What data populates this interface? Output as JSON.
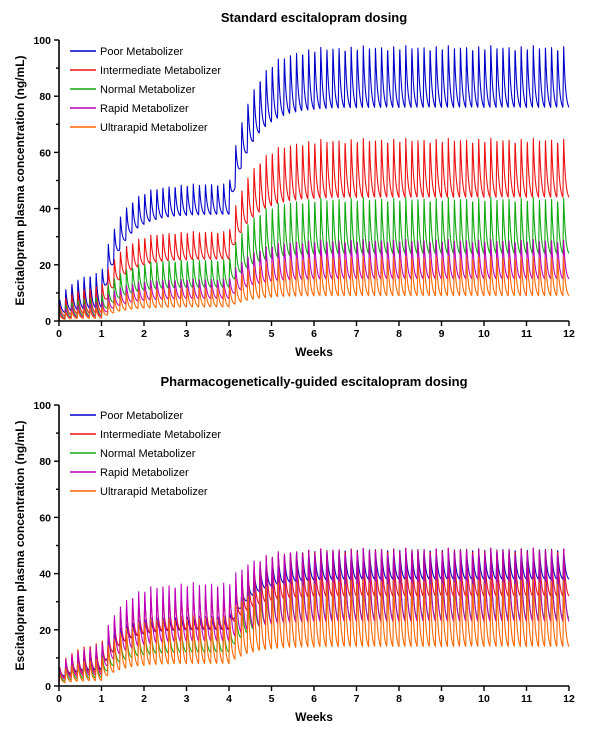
{
  "chart_data": [
    {
      "type": "line",
      "title": "Standard escitalopram dosing",
      "xlabel": "Weeks",
      "ylabel": "Escitalopram plasma concentration (ng/mL)",
      "xlim": [
        0,
        12
      ],
      "ylim": [
        0,
        100
      ],
      "xticks": [
        0,
        1,
        2,
        3,
        4,
        5,
        6,
        7,
        8,
        9,
        10,
        11,
        12
      ],
      "yticks": [
        0,
        20,
        40,
        60,
        80,
        100
      ],
      "grid": false,
      "legend_position": "top-left",
      "dose_change_weeks": [
        1,
        4
      ],
      "series": [
        {
          "name": "Poor Metabolizer",
          "color": "#0000cc",
          "trough": [
            5,
            38,
            76
          ],
          "peak": [
            18,
            49,
            98
          ],
          "cycles_per_week": 7
        },
        {
          "name": "Intermediate Metabolizer",
          "color": "#ee1111",
          "trough": [
            3,
            22,
            44
          ],
          "peak": [
            13,
            32,
            65
          ],
          "cycles_per_week": 7
        },
        {
          "name": "Normal Metabolizer",
          "color": "#11aa11",
          "trough": [
            2,
            12,
            24
          ],
          "peak": [
            9,
            22,
            44
          ],
          "cycles_per_week": 7
        },
        {
          "name": "Rapid Metabolizer",
          "color": "#bb00bb",
          "trough": [
            1.5,
            8,
            15
          ],
          "peak": [
            7,
            15,
            29
          ],
          "cycles_per_week": 7
        },
        {
          "name": "Ultrarapid Metabolizer",
          "color": "#ff6600",
          "trough": [
            1,
            5,
            9
          ],
          "peak": [
            5,
            12,
            23
          ],
          "cycles_per_week": 7
        }
      ]
    },
    {
      "type": "line",
      "title": "Pharmacogenetically-guided escitalopram dosing",
      "xlabel": "Weeks",
      "ylabel": "Escitalopram plasma concentration (ng/mL)",
      "xlim": [
        0,
        12
      ],
      "ylim": [
        0,
        100
      ],
      "xticks": [
        0,
        1,
        2,
        3,
        4,
        5,
        6,
        7,
        8,
        9,
        10,
        11,
        12
      ],
      "yticks": [
        0,
        20,
        40,
        60,
        80,
        100
      ],
      "grid": false,
      "legend_position": "top-left",
      "dose_change_weeks": [
        1,
        4
      ],
      "series": [
        {
          "name": "Poor Metabolizer",
          "color": "#0000cc",
          "trough": [
            6,
            20,
            38
          ],
          "peak": [
            14,
            25,
            49
          ],
          "cycles_per_week": 7
        },
        {
          "name": "Intermediate Metabolizer",
          "color": "#ee1111",
          "trough": [
            5,
            20,
            32
          ],
          "peak": [
            16,
            33,
            49
          ],
          "cycles_per_week": 7
        },
        {
          "name": "Normal Metabolizer",
          "color": "#11aa11",
          "trough": [
            3,
            12,
            24
          ],
          "peak": [
            11,
            22,
            44
          ],
          "cycles_per_week": 7
        },
        {
          "name": "Rapid Metabolizer",
          "color": "#bb00bb",
          "trough": [
            4,
            16,
            23
          ],
          "peak": [
            15,
            37,
            49
          ],
          "cycles_per_week": 7
        },
        {
          "name": "Ultrarapid Metabolizer",
          "color": "#ff6600",
          "trough": [
            2,
            8,
            14
          ],
          "peak": [
            10,
            25,
            38
          ],
          "cycles_per_week": 7
        }
      ]
    }
  ]
}
